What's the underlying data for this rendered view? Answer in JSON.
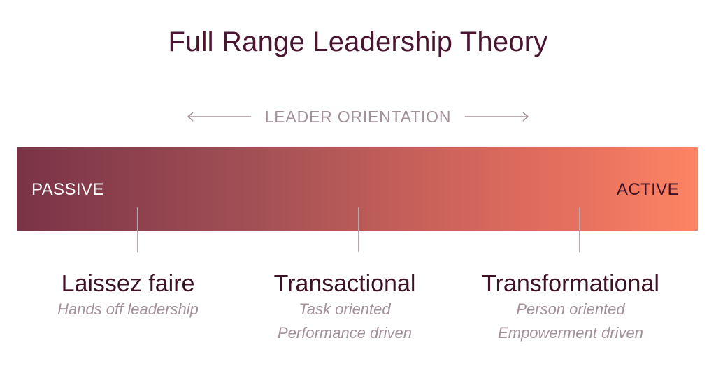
{
  "title": "Full Range Leadership Theory",
  "orientation_label": "LEADER ORIENTATION",
  "bar": {
    "left_label": "PASSIVE",
    "right_label": "ACTIVE",
    "gradient_start": "#7a3346",
    "gradient_end": "#fd8463"
  },
  "categories": [
    {
      "name": "Laissez faire",
      "descriptions": [
        "Hands off leadership"
      ]
    },
    {
      "name": "Transactional",
      "descriptions": [
        "Task oriented",
        "Performance driven"
      ]
    },
    {
      "name": "Transformational",
      "descriptions": [
        "Person oriented",
        "Empowerment driven"
      ]
    }
  ],
  "colors": {
    "title": "#4a1530",
    "muted": "#a3909a"
  }
}
